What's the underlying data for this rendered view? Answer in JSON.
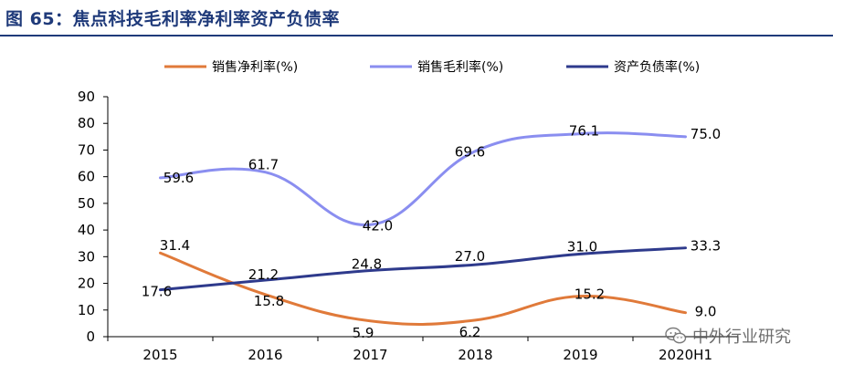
{
  "figure": {
    "title": "图 65：焦点科技毛利率净利率资产负债率"
  },
  "watermark": {
    "text": "中外行业研究",
    "icon": "wechat-icon"
  },
  "colors": {
    "title": "#1f3a7a",
    "net_margin": "#e07a3a",
    "gross_margin": "#8a8ef0",
    "debt_ratio": "#2e3a8c",
    "axis": "#000000"
  },
  "chart_data": {
    "type": "line",
    "categories": [
      "2015",
      "2016",
      "2017",
      "2018",
      "2019",
      "2020H1"
    ],
    "ylim": [
      0,
      90
    ],
    "yticks": [
      0,
      10,
      20,
      30,
      40,
      50,
      60,
      70,
      80,
      90
    ],
    "grid": false,
    "smooth": true,
    "legend_position": "top",
    "series": [
      {
        "name": "销售净利率(%)",
        "color": "#e07a3a",
        "values": [
          31.4,
          15.8,
          5.9,
          6.2,
          15.2,
          9.0
        ],
        "labels": [
          "31.4",
          "15.8",
          "5.9",
          "6.2",
          "15.2",
          "9.0"
        ]
      },
      {
        "name": "销售毛利率(%)",
        "color": "#8a8ef0",
        "values": [
          59.6,
          61.7,
          42.0,
          69.6,
          76.1,
          75.0
        ],
        "labels": [
          "59.6",
          "61.7",
          "42.0",
          "69.6",
          "76.1",
          "75.0"
        ]
      },
      {
        "name": "资产负债率(%)",
        "color": "#2e3a8c",
        "values": [
          17.6,
          21.2,
          24.8,
          27.0,
          31.0,
          33.3
        ],
        "labels": [
          "17.6",
          "21.2",
          "24.8",
          "27.0",
          "31.0",
          "33.3"
        ]
      }
    ]
  }
}
